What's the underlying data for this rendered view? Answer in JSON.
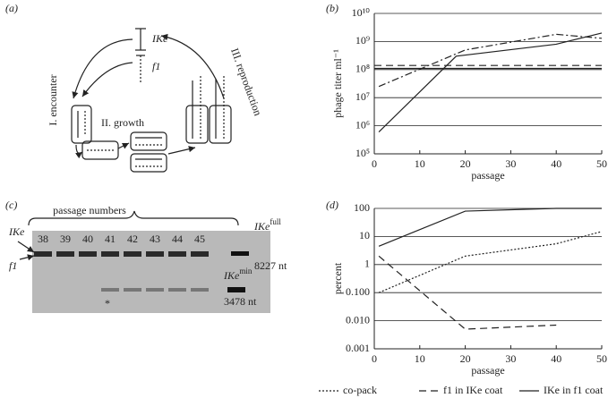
{
  "panel_labels": [
    "(a)",
    "(b)",
    "(c)",
    "(d)"
  ],
  "diagram": {
    "phages": [
      "IKe",
      "f1"
    ],
    "stages": [
      "I. encounter",
      "II. growth",
      "III. reproduction"
    ]
  },
  "gel": {
    "title": "passage numbers",
    "lanes": [
      "38",
      "39",
      "40",
      "41",
      "42",
      "43",
      "44",
      "45"
    ],
    "band_labels": [
      "IKe",
      "f1"
    ],
    "markers": [
      {
        "name": "IKe",
        "superscript": "full",
        "size": "8227 nt"
      },
      {
        "name": "IKe",
        "superscript": "min",
        "size": "3478 nt"
      }
    ],
    "note": "*"
  },
  "chart_data": [
    {
      "type": "line",
      "xlabel": "passage",
      "ylabel": "phage titer ml⁻¹",
      "xlim": [
        0,
        50
      ],
      "xticks": [
        0,
        10,
        20,
        30,
        40,
        50
      ],
      "ylim": [
        100000,
        10000000000
      ],
      "log_y": true,
      "grid": true,
      "yticks": [
        {
          "value": 100000,
          "label": "10⁵"
        },
        {
          "value": 1000000,
          "label": "10⁶"
        },
        {
          "value": 10000000,
          "label": "10⁷"
        },
        {
          "value": 100000000,
          "label": "10⁸"
        },
        {
          "value": 1000000000,
          "label": "10⁹"
        },
        {
          "value": 10000000000,
          "label": "10¹⁰"
        }
      ],
      "series": [
        {
          "color": "#222222",
          "dash": "dashdot",
          "x": [
            1,
            20,
            40,
            50
          ],
          "values": [
            25000000,
            500000000,
            1800000000,
            1300000000
          ]
        },
        {
          "color": "#222222",
          "dash": "solid",
          "x": [
            1,
            18,
            40,
            50
          ],
          "values": [
            600000,
            300000000,
            800000000,
            2000000000
          ]
        },
        {
          "color": "#222222",
          "dash": "dashed",
          "x": [
            0,
            50
          ],
          "values": [
            140000000,
            140000000
          ]
        },
        {
          "color": "#222222",
          "dash": "solid",
          "x": [
            0,
            50
          ],
          "values": [
            110000000,
            110000000
          ]
        }
      ]
    },
    {
      "type": "line",
      "xlabel": "passage",
      "ylabel": "percent",
      "xlim": [
        0,
        50
      ],
      "xticks": [
        0,
        10,
        20,
        30,
        40,
        50
      ],
      "ylim": [
        0.001,
        100
      ],
      "log_y": true,
      "grid": true,
      "yticks": [
        0.001,
        {
          "value": 0.01,
          "label": "0.010"
        },
        {
          "value": 0.1,
          "label": "0.100"
        },
        1,
        10,
        100
      ],
      "series": [
        {
          "name": "co-pack",
          "color": "#222222",
          "dash": "dotted",
          "x": [
            1,
            20,
            40,
            50
          ],
          "values": [
            0.1,
            2,
            5.5,
            15
          ]
        },
        {
          "name": "f1 in IKe coat",
          "color": "#222222",
          "dash": "dashed",
          "x": [
            1,
            20,
            40
          ],
          "values": [
            2,
            0.005,
            0.007
          ]
        },
        {
          "name": "IKe in f1 coat",
          "color": "#222222",
          "dash": "solid",
          "x": [
            1,
            20,
            40,
            50
          ],
          "values": [
            4.5,
            80,
            100,
            100
          ]
        }
      ]
    }
  ]
}
